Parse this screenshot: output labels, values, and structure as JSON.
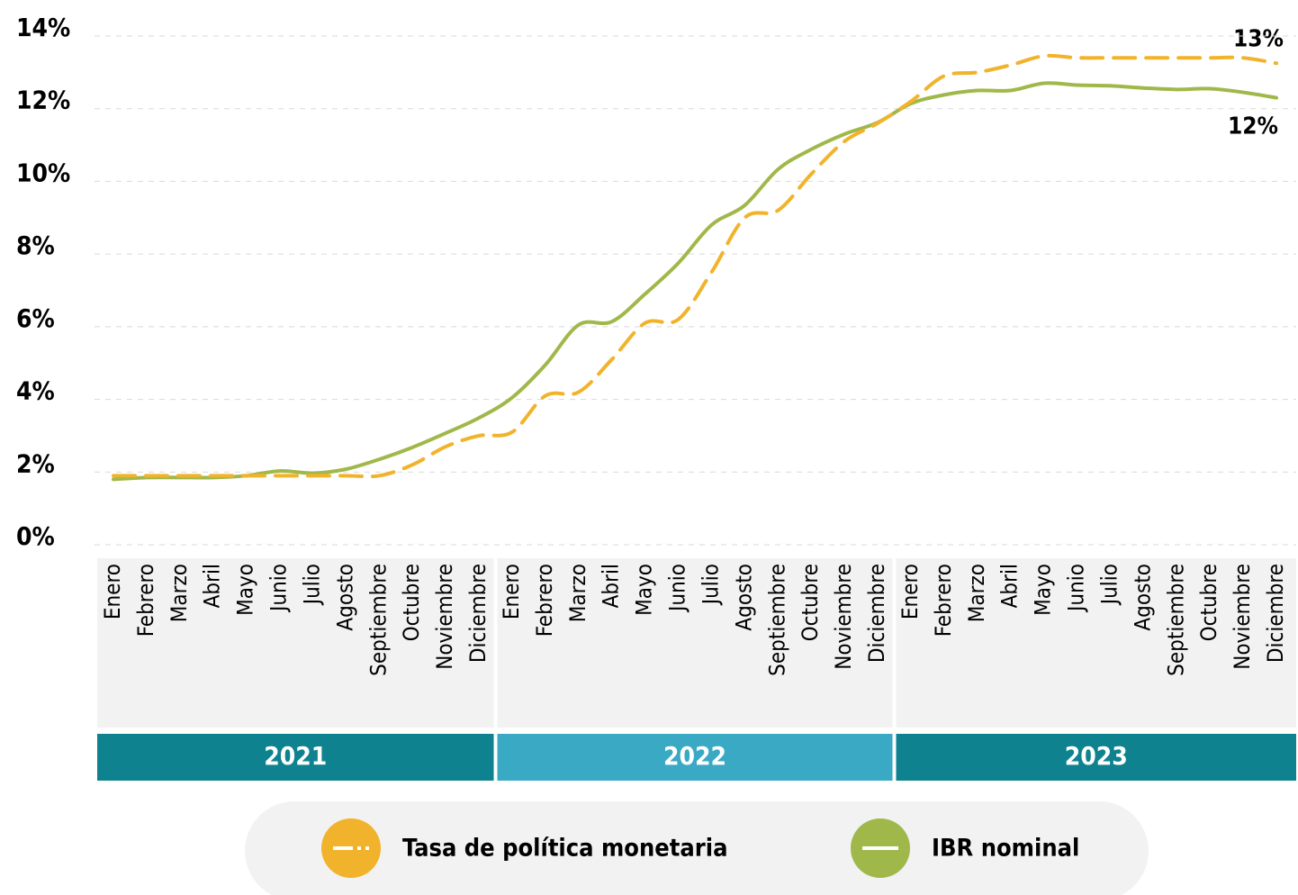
{
  "chart_data": {
    "type": "line",
    "categories": [
      "Enero",
      "Febrero",
      "Marzo",
      "Abril",
      "Mayo",
      "Junio",
      "Julio",
      "Agosto",
      "Septiembre",
      "Octubre",
      "Noviembre",
      "Diciembre",
      "Enero",
      "Febrero",
      "Marzo",
      "Abril",
      "Mayo",
      "Junio",
      "Julio",
      "Agosto",
      "Septiembre",
      "Octubre",
      "Noviembre",
      "Diciembre",
      "Enero",
      "Febrero",
      "Marzo",
      "Abril",
      "Mayo",
      "Junio",
      "Julio",
      "Agosto",
      "Septiembre",
      "Octubre",
      "Noviembre",
      "Diciembre"
    ],
    "year_groups": [
      {
        "label": "2021",
        "color": "#0f8290"
      },
      {
        "label": "2022",
        "color": "#3aa9c4"
      },
      {
        "label": "2023",
        "color": "#0f8290"
      }
    ],
    "series": [
      {
        "name": "Tasa de política monetaria",
        "color": "#f1b32b",
        "dashed": true,
        "values": [
          1.9,
          1.9,
          1.9,
          1.9,
          1.9,
          1.9,
          1.9,
          1.9,
          1.9,
          2.2,
          2.7,
          3.0,
          3.1,
          4.1,
          4.2,
          5.1,
          6.1,
          6.2,
          7.5,
          9.0,
          9.2,
          10.2,
          11.1,
          11.6,
          12.2,
          12.9,
          13.0,
          13.2,
          13.45,
          13.4,
          13.4,
          13.4,
          13.4,
          13.4,
          13.4,
          13.25
        ]
      },
      {
        "name": "IBR nominal",
        "color": "#a0b84a",
        "dashed": false,
        "values": [
          1.8,
          1.85,
          1.85,
          1.85,
          1.9,
          2.03,
          1.97,
          2.08,
          2.35,
          2.68,
          3.07,
          3.49,
          4.05,
          4.95,
          6.05,
          6.14,
          6.9,
          7.75,
          8.8,
          9.34,
          10.33,
          10.88,
          11.3,
          11.62,
          12.14,
          12.38,
          12.5,
          12.5,
          12.7,
          12.65,
          12.63,
          12.57,
          12.53,
          12.55,
          12.45,
          12.3
        ]
      }
    ],
    "annotations": [
      {
        "text": "13%"
      },
      {
        "text": "12%"
      }
    ],
    "ylim": [
      0,
      14
    ],
    "yticks": [
      {
        "value": 0,
        "label": "0%"
      },
      {
        "value": 2,
        "label": "2%"
      },
      {
        "value": 4,
        "label": "4%"
      },
      {
        "value": 6,
        "label": "6%"
      },
      {
        "value": 8,
        "label": "8%"
      },
      {
        "value": 10,
        "label": "10%"
      },
      {
        "value": 12,
        "label": "12%"
      },
      {
        "value": 14,
        "label": "14%"
      }
    ],
    "grid": true
  }
}
